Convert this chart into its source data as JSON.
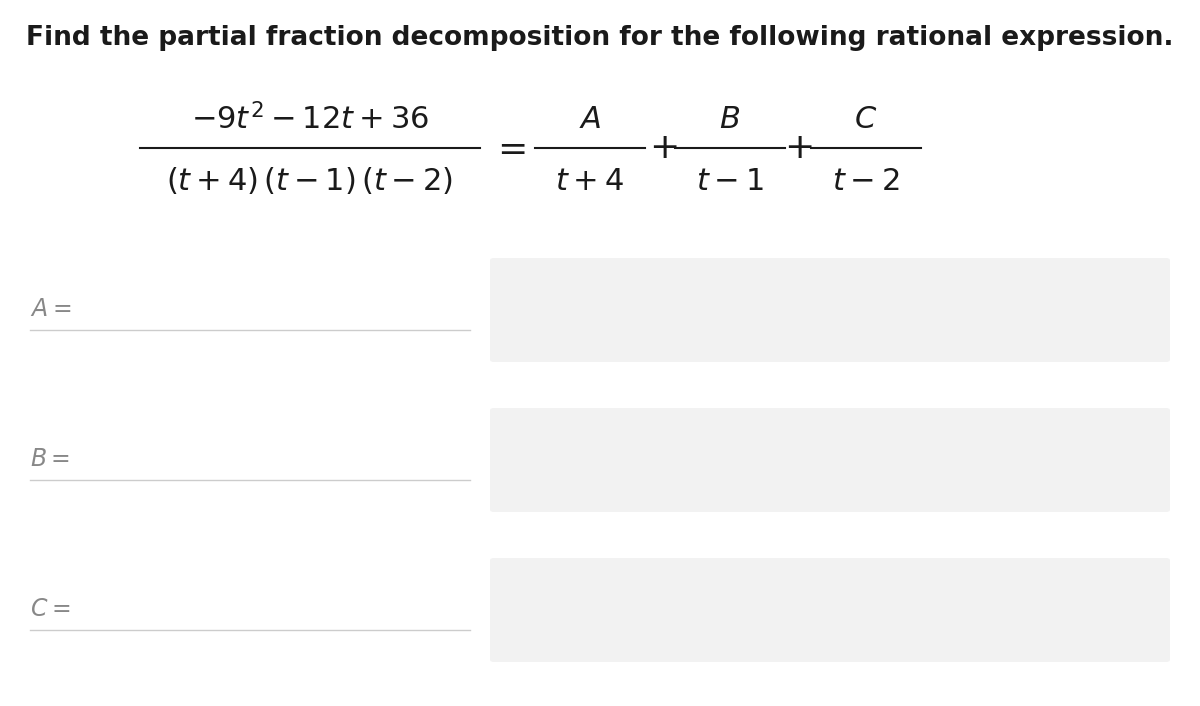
{
  "title": "Find the partial fraction decomposition for the following rational expression.",
  "title_fontsize": 19,
  "title_color": "#1a1a1a",
  "bg_color": "#ffffff",
  "input_box_color": "#f2f2f2",
  "label_color": "#888888",
  "label_fontsize": 17,
  "line_color": "#cccccc",
  "text_color": "#1a1a1a",
  "math_fontsize_large": 22,
  "math_fontsize_small": 20
}
